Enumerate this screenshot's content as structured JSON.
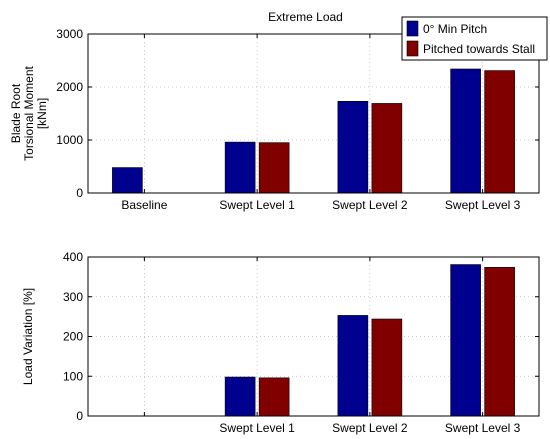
{
  "colors": {
    "series0": "#00008f",
    "series1": "#800000"
  },
  "chart_data": [
    {
      "type": "bar",
      "title": "Extreme Load",
      "ylabel_lines": [
        "Blade Root",
        "Torsional Moment",
        "[kNm]"
      ],
      "categories": [
        "Baseline",
        "Swept Level 1",
        "Swept Level 2",
        "Swept Level 3"
      ],
      "ylim": [
        0,
        3000
      ],
      "yticks": [
        0,
        1000,
        2000,
        3000
      ],
      "grid": true,
      "legend_position": "top-right",
      "series": [
        {
          "name": "0° Min Pitch",
          "values": [
            480,
            960,
            1730,
            2340
          ]
        },
        {
          "name": "Pitched towards Stall",
          "values": [
            null,
            950,
            1690,
            2310
          ]
        }
      ]
    },
    {
      "type": "bar",
      "title": "",
      "ylabel_lines": [
        "Load Variation [%]"
      ],
      "categories": [
        "",
        "Swept Level 1",
        "Swept Level 2",
        "Swept Level 3"
      ],
      "ylim": [
        0,
        400
      ],
      "yticks": [
        0,
        100,
        200,
        300,
        400
      ],
      "grid": true,
      "series": [
        {
          "name": "0° Min Pitch",
          "values": [
            null,
            98,
            253,
            381
          ]
        },
        {
          "name": "Pitched towards Stall",
          "values": [
            null,
            96,
            244,
            374
          ]
        }
      ]
    }
  ]
}
